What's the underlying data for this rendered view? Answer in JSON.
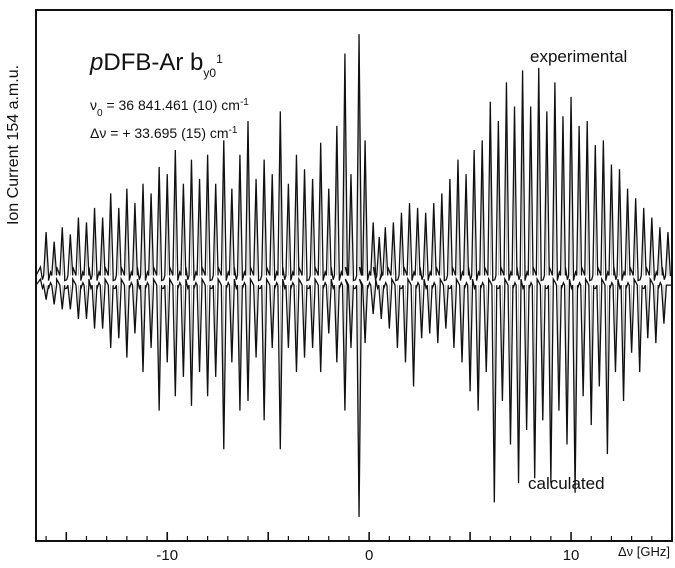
{
  "chart_data": {
    "type": "line",
    "title": {
      "molecule_prefix": "p",
      "molecule_rest": "DFB-Ar",
      "band_symbol": "b",
      "band_subscript": "y0",
      "band_superscript": "1"
    },
    "annotations": [
      {
        "symbol": "ν",
        "subscript": "0",
        "text": " = 36 841.461 (10) cm",
        "superscript": "-1"
      },
      {
        "symbol": "Δν",
        "subscript": "",
        "text": " = + 33.695 (15) cm",
        "superscript": "-1"
      }
    ],
    "xlabel": "Δν [GHz]",
    "ylabel": "Ion Current 154 a.m.u.",
    "xlim": [
      -16.5,
      15.0
    ],
    "x_tick_labels": [
      "-10",
      "0",
      "10"
    ],
    "x_tick_label_values": [
      -10,
      0,
      10
    ],
    "x_ticks_major": [
      -15,
      -10,
      -5,
      0,
      5,
      10,
      15
    ],
    "x_ticks_minor": [
      -16,
      -14,
      -13,
      -12,
      -11,
      -9,
      -8,
      -7,
      -6,
      -4,
      -3,
      -2,
      -1,
      1,
      2,
      3,
      4,
      6,
      7,
      8,
      9,
      11,
      12,
      13,
      14
    ],
    "ylim": [
      -1.1,
      1.1
    ],
    "grid": false,
    "legend": "none",
    "series": [
      {
        "name": "experimental",
        "direction": "up",
        "baseline": 0.0,
        "peaks": [
          {
            "x": -16.0,
            "y": 0.18
          },
          {
            "x": -15.6,
            "y": 0.14
          },
          {
            "x": -15.2,
            "y": 0.2
          },
          {
            "x": -14.8,
            "y": 0.17
          },
          {
            "x": -14.4,
            "y": 0.24
          },
          {
            "x": -14.0,
            "y": 0.22
          },
          {
            "x": -13.6,
            "y": 0.28
          },
          {
            "x": -13.2,
            "y": 0.24
          },
          {
            "x": -12.8,
            "y": 0.34
          },
          {
            "x": -12.4,
            "y": 0.28
          },
          {
            "x": -12.0,
            "y": 0.36
          },
          {
            "x": -11.6,
            "y": 0.3
          },
          {
            "x": -11.2,
            "y": 0.38
          },
          {
            "x": -10.8,
            "y": 0.34
          },
          {
            "x": -10.4,
            "y": 0.45
          },
          {
            "x": -10.0,
            "y": 0.42
          },
          {
            "x": -9.6,
            "y": 0.52
          },
          {
            "x": -9.2,
            "y": 0.38
          },
          {
            "x": -8.8,
            "y": 0.48
          },
          {
            "x": -8.4,
            "y": 0.4
          },
          {
            "x": -8.0,
            "y": 0.5
          },
          {
            "x": -7.6,
            "y": 0.38
          },
          {
            "x": -7.2,
            "y": 0.56
          },
          {
            "x": -6.8,
            "y": 0.36
          },
          {
            "x": -6.4,
            "y": 0.5
          },
          {
            "x": -6.0,
            "y": 0.64
          },
          {
            "x": -5.6,
            "y": 0.4
          },
          {
            "x": -5.2,
            "y": 0.48
          },
          {
            "x": -4.8,
            "y": 0.42
          },
          {
            "x": -4.4,
            "y": 0.68
          },
          {
            "x": -4.0,
            "y": 0.38
          },
          {
            "x": -3.6,
            "y": 0.5
          },
          {
            "x": -3.2,
            "y": 0.44
          },
          {
            "x": -2.8,
            "y": 0.4
          },
          {
            "x": -2.4,
            "y": 0.55
          },
          {
            "x": -2.0,
            "y": 0.36
          },
          {
            "x": -1.6,
            "y": 0.62
          },
          {
            "x": -1.2,
            "y": 0.92
          },
          {
            "x": -0.9,
            "y": 0.42
          },
          {
            "x": -0.5,
            "y": 1.0
          },
          {
            "x": -0.2,
            "y": 0.56
          },
          {
            "x": 0.2,
            "y": 0.22
          },
          {
            "x": 0.5,
            "y": 0.16
          },
          {
            "x": 0.8,
            "y": 0.2
          },
          {
            "x": 1.2,
            "y": 0.22
          },
          {
            "x": 1.6,
            "y": 0.26
          },
          {
            "x": 2.0,
            "y": 0.3
          },
          {
            "x": 2.4,
            "y": 0.28
          },
          {
            "x": 2.8,
            "y": 0.26
          },
          {
            "x": 3.2,
            "y": 0.3
          },
          {
            "x": 3.6,
            "y": 0.34
          },
          {
            "x": 4.0,
            "y": 0.4
          },
          {
            "x": 4.4,
            "y": 0.48
          },
          {
            "x": 4.8,
            "y": 0.42
          },
          {
            "x": 5.2,
            "y": 0.52
          },
          {
            "x": 5.6,
            "y": 0.56
          },
          {
            "x": 6.0,
            "y": 0.72
          },
          {
            "x": 6.4,
            "y": 0.64
          },
          {
            "x": 6.8,
            "y": 0.8
          },
          {
            "x": 7.2,
            "y": 0.7
          },
          {
            "x": 7.6,
            "y": 0.85
          },
          {
            "x": 8.0,
            "y": 0.7
          },
          {
            "x": 8.4,
            "y": 0.86
          },
          {
            "x": 8.8,
            "y": 0.68
          },
          {
            "x": 9.2,
            "y": 0.8
          },
          {
            "x": 9.6,
            "y": 0.66
          },
          {
            "x": 10.0,
            "y": 0.74
          },
          {
            "x": 10.4,
            "y": 0.62
          },
          {
            "x": 10.8,
            "y": 0.64
          },
          {
            "x": 11.2,
            "y": 0.54
          },
          {
            "x": 11.6,
            "y": 0.56
          },
          {
            "x": 12.0,
            "y": 0.46
          },
          {
            "x": 12.4,
            "y": 0.44
          },
          {
            "x": 12.8,
            "y": 0.36
          },
          {
            "x": 13.2,
            "y": 0.32
          },
          {
            "x": 13.6,
            "y": 0.28
          },
          {
            "x": 14.0,
            "y": 0.24
          },
          {
            "x": 14.4,
            "y": 0.2
          },
          {
            "x": 14.8,
            "y": 0.18
          }
        ]
      },
      {
        "name": "calculated",
        "direction": "down",
        "baseline": -0.04,
        "peaks": [
          {
            "x": -16.0,
            "y": -0.1
          },
          {
            "x": -15.6,
            "y": -0.12
          },
          {
            "x": -15.2,
            "y": -0.14
          },
          {
            "x": -14.8,
            "y": -0.14
          },
          {
            "x": -14.4,
            "y": -0.18
          },
          {
            "x": -14.0,
            "y": -0.18
          },
          {
            "x": -13.6,
            "y": -0.22
          },
          {
            "x": -13.2,
            "y": -0.22
          },
          {
            "x": -12.8,
            "y": -0.3
          },
          {
            "x": -12.4,
            "y": -0.26
          },
          {
            "x": -12.0,
            "y": -0.34
          },
          {
            "x": -11.6,
            "y": -0.24
          },
          {
            "x": -11.2,
            "y": -0.4
          },
          {
            "x": -10.8,
            "y": -0.3
          },
          {
            "x": -10.4,
            "y": -0.56
          },
          {
            "x": -10.0,
            "y": -0.36
          },
          {
            "x": -9.6,
            "y": -0.5
          },
          {
            "x": -9.2,
            "y": -0.42
          },
          {
            "x": -8.8,
            "y": -0.54
          },
          {
            "x": -8.4,
            "y": -0.4
          },
          {
            "x": -8.0,
            "y": -0.5
          },
          {
            "x": -7.6,
            "y": -0.42
          },
          {
            "x": -7.2,
            "y": -0.72
          },
          {
            "x": -6.8,
            "y": -0.36
          },
          {
            "x": -6.4,
            "y": -0.56
          },
          {
            "x": -6.0,
            "y": -0.52
          },
          {
            "x": -5.6,
            "y": -0.34
          },
          {
            "x": -5.2,
            "y": -0.6
          },
          {
            "x": -4.8,
            "y": -0.3
          },
          {
            "x": -4.4,
            "y": -0.72
          },
          {
            "x": -4.0,
            "y": -0.3
          },
          {
            "x": -3.6,
            "y": -0.4
          },
          {
            "x": -3.2,
            "y": -0.34
          },
          {
            "x": -2.8,
            "y": -0.3
          },
          {
            "x": -2.4,
            "y": -0.4
          },
          {
            "x": -2.0,
            "y": -0.24
          },
          {
            "x": -1.6,
            "y": -0.36
          },
          {
            "x": -1.2,
            "y": -0.56
          },
          {
            "x": -0.9,
            "y": -0.3
          },
          {
            "x": -0.5,
            "y": -1.0
          },
          {
            "x": -0.2,
            "y": -0.28
          },
          {
            "x": 0.2,
            "y": -0.16
          },
          {
            "x": 0.6,
            "y": -0.18
          },
          {
            "x": 1.0,
            "y": -0.22
          },
          {
            "x": 1.4,
            "y": -0.3
          },
          {
            "x": 1.8,
            "y": -0.36
          },
          {
            "x": 2.2,
            "y": -0.46
          },
          {
            "x": 2.6,
            "y": -0.26
          },
          {
            "x": 3.0,
            "y": -0.24
          },
          {
            "x": 3.4,
            "y": -0.28
          },
          {
            "x": 3.8,
            "y": -0.22
          },
          {
            "x": 4.2,
            "y": -0.3
          },
          {
            "x": 4.6,
            "y": -0.36
          },
          {
            "x": 5.0,
            "y": -0.48
          },
          {
            "x": 5.4,
            "y": -0.56
          },
          {
            "x": 5.8,
            "y": -0.4
          },
          {
            "x": 6.2,
            "y": -0.94
          },
          {
            "x": 6.6,
            "y": -0.52
          },
          {
            "x": 7.0,
            "y": -0.7
          },
          {
            "x": 7.4,
            "y": -0.86
          },
          {
            "x": 7.8,
            "y": -0.64
          },
          {
            "x": 8.2,
            "y": -0.84
          },
          {
            "x": 8.6,
            "y": -0.6
          },
          {
            "x": 9.0,
            "y": -0.86
          },
          {
            "x": 9.4,
            "y": -0.56
          },
          {
            "x": 9.8,
            "y": -0.7
          },
          {
            "x": 10.2,
            "y": -0.9
          },
          {
            "x": 10.6,
            "y": -0.5
          },
          {
            "x": 11.0,
            "y": -0.62
          },
          {
            "x": 11.4,
            "y": -0.46
          },
          {
            "x": 11.8,
            "y": -0.74
          },
          {
            "x": 12.2,
            "y": -0.4
          },
          {
            "x": 12.6,
            "y": -0.52
          },
          {
            "x": 13.0,
            "y": -0.32
          },
          {
            "x": 13.4,
            "y": -0.4
          },
          {
            "x": 13.8,
            "y": -0.26
          },
          {
            "x": 14.2,
            "y": -0.28
          },
          {
            "x": 14.6,
            "y": -0.2
          }
        ]
      }
    ]
  }
}
